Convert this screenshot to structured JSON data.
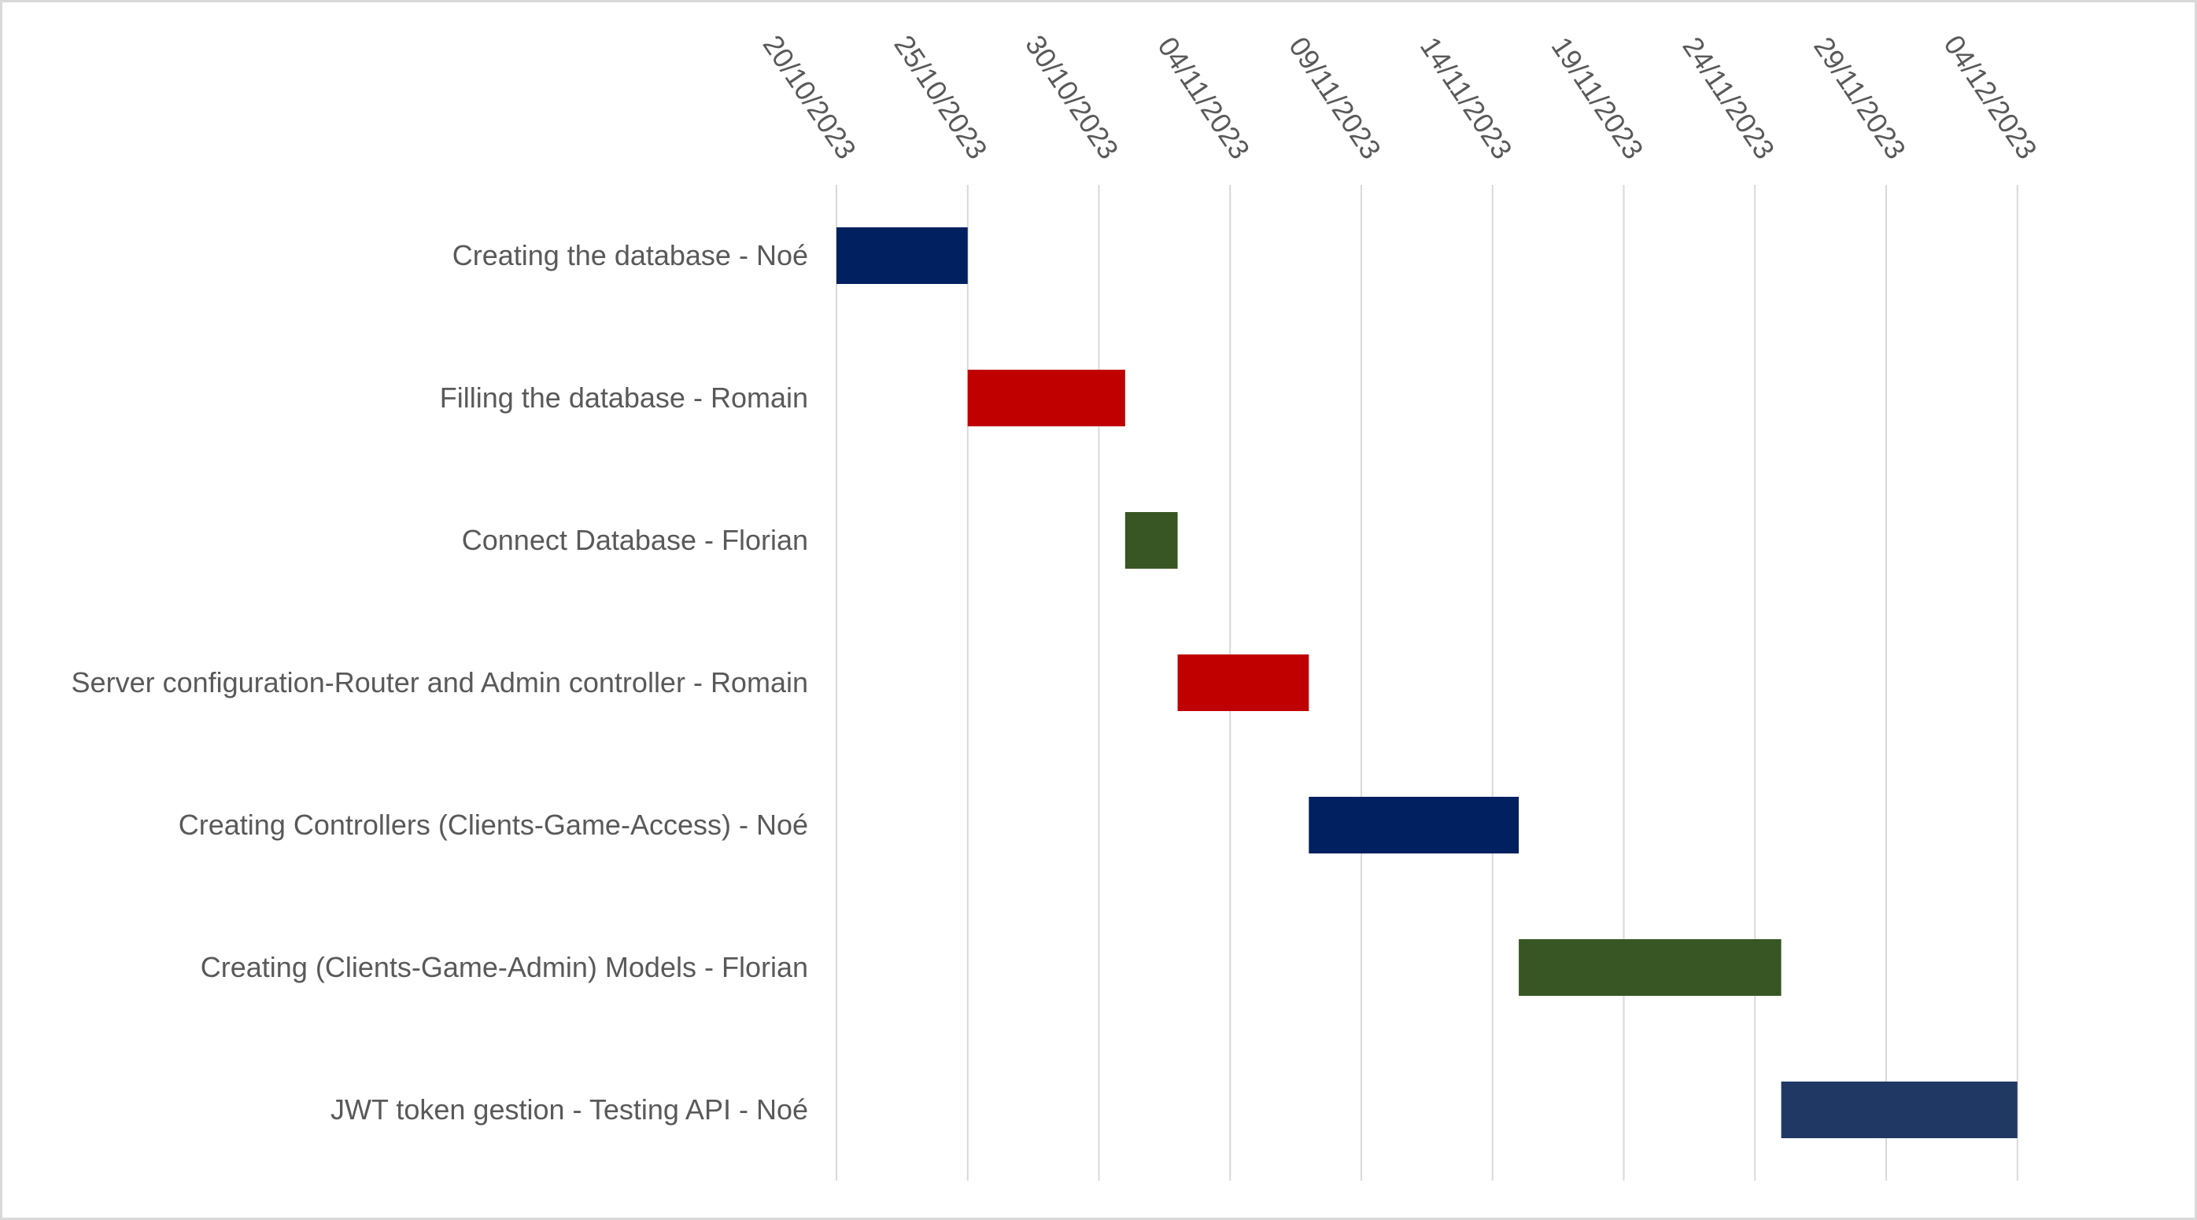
{
  "chart_data": {
    "type": "bar",
    "subtype": "gantt",
    "title": "",
    "xlabel": "",
    "ylabel": "",
    "x_axis_position": "top",
    "grid": true,
    "legend": "none",
    "x_ticks": [
      "20/10/2023",
      "25/10/2023",
      "30/10/2023",
      "04/11/2023",
      "09/11/2023",
      "14/11/2023",
      "19/11/2023",
      "24/11/2023",
      "29/11/2023",
      "04/12/2023"
    ],
    "tasks": [
      {
        "label": "Creating the database - Noé",
        "start": "2023-10-20",
        "end": "2023-10-25",
        "color": "#002060"
      },
      {
        "label": "Filling the database - Romain",
        "start": "2023-10-25",
        "end": "2023-10-31",
        "color": "#c00000"
      },
      {
        "label": "Connect Database - Florian",
        "start": "2023-10-31",
        "end": "2023-11-02",
        "color": "#375623"
      },
      {
        "label": "Server configuration-Router and Admin controller - Romain",
        "start": "2023-11-02",
        "end": "2023-11-07",
        "color": "#c00000"
      },
      {
        "label": "Creating Controllers (Clients-Game-Access) - Noé",
        "start": "2023-11-07",
        "end": "2023-11-15",
        "color": "#002060"
      },
      {
        "label": "Creating (Clients-Game-Admin) Models - Florian",
        "start": "2023-11-15",
        "end": "2023-11-25",
        "color": "#375623"
      },
      {
        "label": "JWT token gestion - Testing API - Noé",
        "start": "2023-11-25",
        "end": "2023-12-04",
        "color": "#203864"
      }
    ]
  }
}
